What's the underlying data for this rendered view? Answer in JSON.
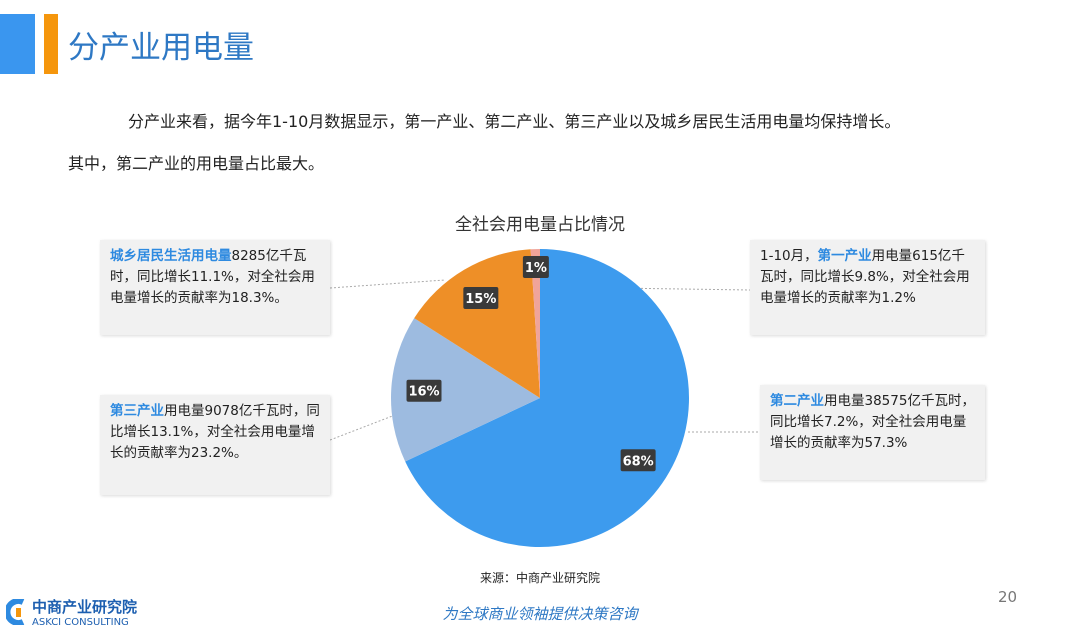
{
  "header": {
    "title": "分产业用电量"
  },
  "intro": {
    "line1": "分产业来看，据今年1-10月数据显示，第一产业、第二产业、第三产业以及城乡居民生活用电量均保持增长。",
    "line2": "其中，第二产业的用电量占比最大。"
  },
  "callouts": {
    "residential": {
      "name": "城乡居民生活用电量",
      "text": "8285亿千瓦时，同比增长11.1%，对全社会用电量增长的贡献率为18.3%。"
    },
    "primary": {
      "prefix": "1-10月，",
      "name": "第一产业",
      "text": "用电量615亿千瓦时，同比增长9.8%，对全社会用电量增长的贡献率为1.2%"
    },
    "tertiary": {
      "name": "第三产业",
      "text": "用电量9078亿千瓦时，同比增长13.1%，对全社会用电量增长的贡献率为23.2%。"
    },
    "secondary": {
      "name": "第二产业",
      "text": "用电量38575亿千瓦时，同比增长7.2%，对全社会用电量增长的贡献率为57.3%"
    }
  },
  "chart_data": {
    "type": "pie",
    "title": "全社会用电量占比情况",
    "categories": [
      "第二产业",
      "第三产业",
      "城乡居民生活",
      "第一产业"
    ],
    "values": [
      68,
      16,
      15,
      1
    ],
    "labels": [
      "68%",
      "16%",
      "15%",
      "1%"
    ],
    "colors": [
      "#3d9bee",
      "#9dbbe0",
      "#ee8f27",
      "#f0a49a"
    ],
    "start": "12 o'clock, clockwise"
  },
  "footer": {
    "source": "来源：中商产业研究院",
    "page": "20",
    "slogan": "为全球商业领袖提供决策咨询",
    "logo_cn": "中商产业研究院",
    "logo_en": "ASKCI CONSULTING"
  }
}
